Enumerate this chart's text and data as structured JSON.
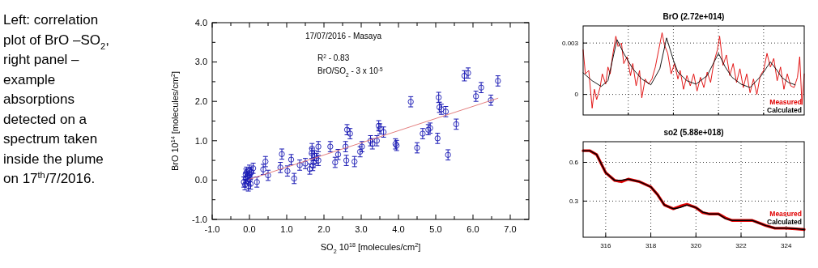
{
  "chart_data": [
    {
      "type": "other",
      "annotations": [
        "Left: correlation",
        "plot of BrO –SO$_{2}$,",
        "right panel –",
        "example",
        "absorptions",
        "detected on a",
        "spectrum taken",
        "inside the plume",
        "on 17$^{th}$/7/2016."
      ]
    },
    {
      "type": "scatter",
      "xlabel": "SO$_{2}$ 10$^{18}$ [molecules/cm$^{2}$]",
      "ylabel": "BrO 10$^{14}$ [molecules/cm$^{2}$]",
      "annotations": [
        "17/07/2016 - Masaya",
        "R$^{2}$ - 0.83",
        "BrO/SO$_{2}$ - 3 x 10$^{-5}$"
      ],
      "xlim": [
        -1,
        7.5
      ],
      "ylim": [
        -1,
        4
      ],
      "xticks": [
        {
          "value": -1,
          "label": "-1.0"
        },
        {
          "value": -0.5,
          "label": null
        },
        {
          "value": 0,
          "label": "0.0"
        },
        {
          "value": 0.5,
          "label": null
        },
        {
          "value": 1,
          "label": "1.0"
        },
        {
          "value": 1.5,
          "label": null
        },
        {
          "value": 2,
          "label": "2.0"
        },
        {
          "value": 2.5,
          "label": null
        },
        {
          "value": 3,
          "label": "3.0"
        },
        {
          "value": 3.5,
          "label": null
        },
        {
          "value": 4,
          "label": "4.0"
        },
        {
          "value": 4.5,
          "label": null
        },
        {
          "value": 5,
          "label": "5.0"
        },
        {
          "value": 5.5,
          "label": null
        },
        {
          "value": 6,
          "label": "6.0"
        },
        {
          "value": 6.5,
          "label": null
        },
        {
          "value": 7,
          "label": "7.0"
        }
      ],
      "yticks": [
        {
          "value": -1,
          "label": "-1.0"
        },
        {
          "value": -0.5,
          "label": null
        },
        {
          "value": 0,
          "label": "0.0"
        },
        {
          "value": 0.5,
          "label": null
        },
        {
          "value": 1,
          "label": "1.0"
        },
        {
          "value": 1.5,
          "label": null
        },
        {
          "value": 2,
          "label": "2.0"
        },
        {
          "value": 2.5,
          "label": null
        },
        {
          "value": 3,
          "label": "3.0"
        },
        {
          "value": 3.5,
          "label": null
        },
        {
          "value": 4,
          "label": "4.0"
        }
      ],
      "grid": false,
      "legend": false,
      "series": [
        {
          "type": "scatter",
          "color": "#1a1ab4",
          "marker": "circle",
          "x": [
            -0.15,
            -0.1,
            -0.12,
            -0.08,
            -0.05,
            -0.03,
            0,
            0,
            0.02,
            0.03,
            0.05,
            -0.1,
            0.1,
            0.2,
            0.37,
            0.43,
            0.5,
            0.83,
            0.87,
            1.02,
            1.12,
            1.2,
            1.35,
            1.5,
            1.62,
            1.67,
            1.68,
            1.7,
            1.72,
            1.75,
            1.8,
            1.85,
            1.85,
            2.17,
            2.3,
            2.38,
            2.58,
            2.6,
            2.62,
            2.7,
            2.82,
            2.97,
            3.02,
            3.25,
            3.3,
            3.42,
            3.47,
            3.5,
            3.6,
            3.92,
            3.95,
            4.33,
            4.5,
            4.65,
            4.8,
            4.85,
            5.05,
            5.08,
            5.1,
            5.15,
            5.27,
            5.33,
            5.55,
            5.77,
            5.87,
            6.08,
            6.22,
            6.48,
            6.67
          ],
          "values": [
            -0.05,
            0.05,
            -0.12,
            0.2,
            0.1,
            -0.15,
            0.25,
            0,
            0.15,
            -0.1,
            0.2,
            0.15,
            0.3,
            -0.05,
            0.27,
            0.47,
            0.12,
            0.32,
            0.66,
            0.23,
            0.52,
            0.04,
            0.38,
            0.42,
            0.28,
            0.68,
            0.8,
            0.37,
            0.45,
            0.62,
            0.55,
            0.85,
            0.5,
            0.85,
            0.45,
            0.65,
            0.85,
            0.5,
            1.28,
            1.18,
            0.47,
            0.72,
            0.85,
            1,
            0.92,
            1,
            1.38,
            1.3,
            1.22,
            0.92,
            0.88,
            1.99,
            0.82,
            1.18,
            1.28,
            1.32,
            1.06,
            2.1,
            1.85,
            1.8,
            1.74,
            0.64,
            1.42,
            2.65,
            2.72,
            2.13,
            2.35,
            2.03,
            2.52
          ],
          "errors": [
            0.13,
            0.13,
            0.13,
            0.13,
            0.13,
            0.13,
            0.13,
            0.13,
            0.13,
            0.13,
            0.13,
            0.13,
            0.13,
            0.13,
            0.13,
            0.13,
            0.13,
            0.13,
            0.13,
            0.13,
            0.13,
            0.13,
            0.13,
            0.13,
            0.13,
            0.13,
            0.13,
            0.13,
            0.13,
            0.13,
            0.13,
            0.13,
            0.13,
            0.13,
            0.13,
            0.13,
            0.13,
            0.13,
            0.13,
            0.13,
            0.13,
            0.13,
            0.13,
            0.13,
            0.13,
            0.13,
            0.13,
            0.13,
            0.13,
            0.13,
            0.13,
            0.13,
            0.13,
            0.13,
            0.13,
            0.13,
            0.13,
            0.13,
            0.13,
            0.13,
            0.13,
            0.13,
            0.13,
            0.13,
            0.13,
            0.13,
            0.13,
            0.13,
            0.13
          ]
        },
        {
          "type": "line",
          "color": "#e07070",
          "x": [
            0,
            6.67
          ],
          "values": [
            0.02,
            2.08
          ]
        }
      ]
    },
    {
      "type": "line",
      "title": "BrO (2.72e+014)",
      "xlim": [
        315,
        324.8
      ],
      "ylim": [
        -0.0012,
        0.004
      ],
      "xticks": [
        {
          "value": 317,
          "label": null
        },
        {
          "value": 319,
          "label": null
        },
        {
          "value": 321,
          "label": null
        },
        {
          "value": 323,
          "label": null
        }
      ],
      "yticks": [
        0,
        0.003
      ],
      "tick_labels": "y",
      "grid": true,
      "legend": "bottom right",
      "series": [
        {
          "name": "Measured",
          "color": "#e00000",
          "x": [
            315,
            315.1,
            315.25,
            315.4,
            315.5,
            315.6,
            315.75,
            315.85,
            316,
            316.1,
            316.2,
            316.3,
            316.45,
            316.55,
            316.7,
            316.8,
            316.95,
            317.1,
            317.2,
            317.35,
            317.5,
            317.6,
            317.75,
            317.9,
            318.05,
            318.2,
            318.35,
            318.5,
            318.6,
            318.75,
            318.9,
            319.05,
            319.2,
            319.3,
            319.45,
            319.6,
            319.75,
            319.9,
            320.05,
            320.2,
            320.35,
            320.5,
            320.65,
            320.8,
            320.95,
            321.05,
            321.2,
            321.35,
            321.5,
            321.65,
            321.8,
            321.95,
            322.1,
            322.25,
            322.4,
            322.55,
            322.7,
            322.85,
            323,
            323.15,
            323.3,
            323.45,
            323.6,
            323.75,
            323.9,
            324.05,
            324.2,
            324.35,
            324.5,
            324.6,
            324.7,
            324.8
          ],
          "values": [
            0.0026,
            0.0012,
            0.0014,
            -0.0008,
            0.0003,
            -0.0003,
            0.0004,
            0.0012,
            0.0006,
            0.0016,
            0.0012,
            0.0022,
            0.0034,
            0.0028,
            0.003,
            0.0018,
            0.0022,
            0.0011,
            0.0018,
            0.0005,
            0.0014,
            -0.0002,
            0.0009,
            0.0006,
            0.0009,
            0.0016,
            0.0026,
            0.0036,
            0.0029,
            0.0024,
            0.0012,
            0.0018,
            0.0009,
            0.0014,
            0.0003,
            0.0011,
            0.0005,
            0.0012,
            0.0002,
            0.001,
            0.0004,
            0.0013,
            0.0007,
            0.0019,
            0.0026,
            0.0034,
            0.0017,
            0.0023,
            0.0011,
            0.0018,
            0.0007,
            0.0015,
            0.0004,
            0.0012,
            0.0001,
            0.0009,
            0.0,
            0.0011,
            0.0014,
            0.0024,
            0.0016,
            0.0021,
            0.0008,
            0.0016,
            0.0003,
            0.0012,
            0.0005,
            0.0004,
            0.001,
            0.0022,
            -0.0006,
            0.0012
          ]
        },
        {
          "name": "Calculated",
          "color": "#000000",
          "x": [
            315,
            315.4,
            315.8,
            316.1,
            316.5,
            316.8,
            317.2,
            317.6,
            318,
            318.4,
            318.7,
            319,
            319.2,
            319.6,
            320,
            320.5,
            321,
            321.3,
            321.6,
            322,
            322.4,
            322.9,
            323.3,
            323.6,
            323.8,
            324.1,
            324.4
          ],
          "values": [
            0.00126,
            0.0008,
            0.00047,
            0.0008,
            0.0032,
            0.0024,
            0.0015,
            0.0009,
            0.00056,
            0.0015,
            0.0033,
            0.002,
            0.0013,
            0.0008,
            0.0006,
            0.0011,
            0.0024,
            0.0016,
            0.001,
            0.0006,
            0.0004,
            0.0011,
            0.0019,
            0.0014,
            0.001,
            0.0007,
            0.00056
          ]
        }
      ]
    },
    {
      "type": "line",
      "title": "so2 (5.88e+018)",
      "xlim": [
        315,
        324.8
      ],
      "ylim": [
        0.02,
        0.76
      ],
      "xticks": [
        316,
        318,
        320,
        322,
        324
      ],
      "yticks": [
        0.3,
        0.6
      ],
      "grid": true,
      "legend": "bottom right",
      "series": [
        {
          "name": "Measured",
          "color": "#e00000",
          "x": [
            315,
            315.3,
            315.6,
            316,
            316.4,
            316.7,
            317,
            317.5,
            318,
            318.3,
            318.6,
            319,
            319.3,
            319.6,
            320,
            320.3,
            320.6,
            321,
            321.3,
            321.6,
            322,
            322.5,
            322.8,
            323.1,
            323.5,
            324,
            324.4,
            324.8
          ],
          "values": [
            0.69,
            0.69,
            0.66,
            0.52,
            0.46,
            0.45,
            0.47,
            0.45,
            0.41,
            0.35,
            0.27,
            0.24,
            0.26,
            0.275,
            0.25,
            0.21,
            0.2,
            0.2,
            0.17,
            0.15,
            0.15,
            0.15,
            0.13,
            0.11,
            0.09,
            0.09,
            0.085,
            0.08
          ]
        },
        {
          "name": "Calculated",
          "color": "#000000",
          "x": [
            315,
            315.3,
            315.6,
            316,
            316.4,
            316.7,
            317,
            317.5,
            318,
            318.3,
            318.6,
            319,
            319.3,
            319.6,
            320,
            320.3,
            320.6,
            321,
            321.3,
            321.6,
            322,
            322.5,
            322.8,
            323.1,
            323.5,
            324,
            324.4,
            324.8
          ],
          "values": [
            0.69,
            0.69,
            0.66,
            0.52,
            0.46,
            0.46,
            0.47,
            0.45,
            0.41,
            0.35,
            0.27,
            0.24,
            0.25,
            0.27,
            0.25,
            0.215,
            0.2,
            0.2,
            0.165,
            0.15,
            0.15,
            0.15,
            0.13,
            0.11,
            0.09,
            0.09,
            0.087,
            0.08
          ]
        }
      ]
    }
  ]
}
